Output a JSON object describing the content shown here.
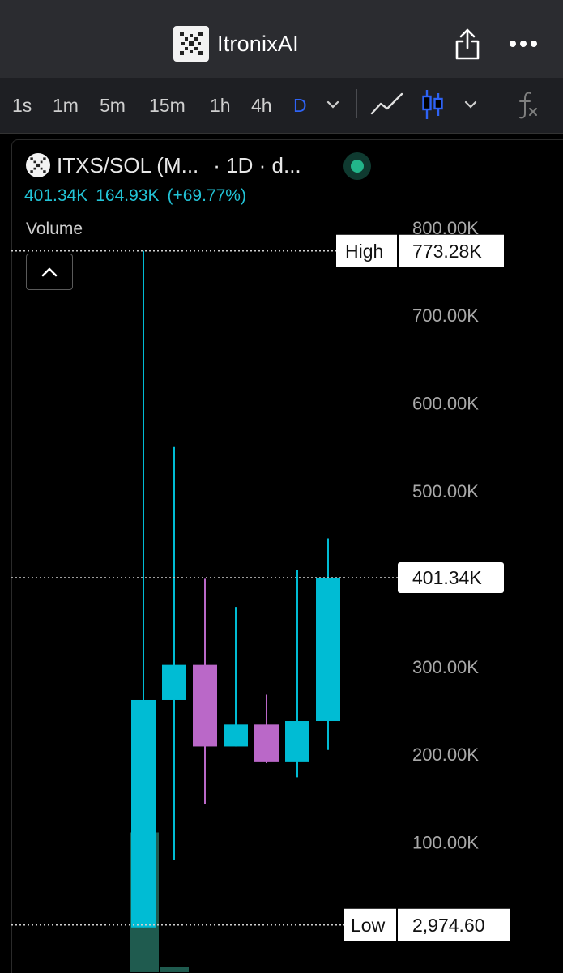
{
  "app": {
    "title": "ItronixAI"
  },
  "toolbar": {
    "timeframes": [
      "1s",
      "1m",
      "5m",
      "15m",
      "1h",
      "4h",
      "D"
    ],
    "active_timeframe": "D",
    "icons": [
      "chevron-down-icon",
      "line-chart-icon",
      "candlestick-icon",
      "chevron-down-icon",
      "function-icon"
    ]
  },
  "symbol": {
    "name": "ITXS/SOL (M...",
    "interval": "· 1D · d...",
    "price": "401.34K",
    "change": "164.93K",
    "change_pct": "(+69.77%)",
    "volume_label": "Volume"
  },
  "colors": {
    "up": "#00bcd4",
    "down": "#ba68c8",
    "volume": "#1f5b4f",
    "accent_blue": "#2e63f5",
    "price_text": "#22c3d6"
  },
  "chart_data": {
    "type": "candlestick",
    "y_axis": {
      "ticks": [
        100000,
        200000,
        300000,
        400000,
        500000,
        600000,
        700000,
        800000
      ],
      "tick_labels": [
        "100.00K",
        "200.00K",
        "300.00K",
        "400.00K",
        "500.00K",
        "600.00K",
        "700.00K",
        "800.00K"
      ],
      "range": [
        0,
        820000
      ]
    },
    "candles": [
      {
        "open": 2974.6,
        "high": 773280,
        "low": 2974.6,
        "close": 262000
      },
      {
        "open": 262000,
        "high": 550000,
        "low": 80000,
        "close": 302000
      },
      {
        "open": 302000,
        "high": 400000,
        "low": 143000,
        "close": 209000
      },
      {
        "open": 209000,
        "high": 368000,
        "low": 209000,
        "close": 234000
      },
      {
        "open": 234000,
        "high": 268000,
        "low": 190000,
        "close": 192000
      },
      {
        "open": 192000,
        "high": 410000,
        "low": 174000,
        "close": 238000
      },
      {
        "open": 238000,
        "high": 446000,
        "low": 205000,
        "close": 401340
      }
    ],
    "volume_visible": [
      0.75,
      0.03
    ],
    "markers": {
      "high": {
        "label": "High",
        "value_label": "773.28K",
        "value": 773280
      },
      "low": {
        "label": "Low",
        "value_label": "2,974.60",
        "value": 2974.6
      },
      "last": {
        "value_label": "401.34K",
        "value": 401340
      }
    }
  }
}
